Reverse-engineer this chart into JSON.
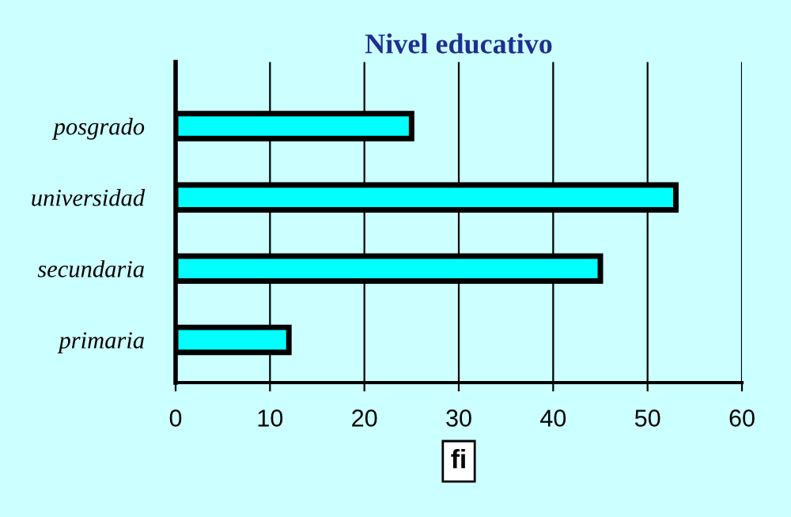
{
  "chart_data": {
    "type": "bar",
    "orientation": "horizontal",
    "title": "Nivel educativo",
    "xlabel": "fi",
    "categories": [
      "posgrado",
      "universidad",
      "secundaria",
      "primaria"
    ],
    "values": [
      25,
      53,
      45,
      12
    ],
    "color": "#00ffff",
    "xlim": [
      0,
      60
    ],
    "xticks": [
      0,
      10,
      20,
      30,
      40,
      50,
      60
    ],
    "grid": "x",
    "legend": false
  }
}
